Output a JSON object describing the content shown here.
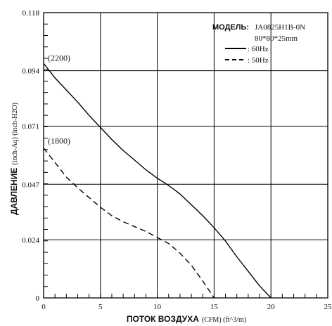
{
  "chart_data": {
    "type": "line",
    "title": "",
    "xlabel": {
      "main": "ПОТОК ВОЗДУХА",
      "units": "(CFM) (ft^3/m)"
    },
    "ylabel": {
      "main": "ДАВЛЕНИЕ",
      "units": "(inch-Aq) (inch-H2O)"
    },
    "xlim": [
      0,
      25
    ],
    "ylim": [
      0,
      0.118
    ],
    "x_ticks": [
      "0",
      "5",
      "10",
      "15",
      "20",
      "25"
    ],
    "y_ticks": [
      "0",
      "0.024",
      "0.047",
      "0.071",
      "0.094",
      "0.118"
    ],
    "x_tick_values": [
      0,
      5,
      10,
      15,
      20,
      25
    ],
    "y_tick_values": [
      0,
      0.024,
      0.047,
      0.071,
      0.094,
      0.118
    ],
    "grid": true,
    "legend": {
      "position": "top-right",
      "model_label": "МОДЕЛЬ:",
      "model_value": "JA0825H1B-0N",
      "size": "80*80*25mm",
      "entries": [
        ": 60Hz",
        ": 50Hz"
      ]
    },
    "series": [
      {
        "name": "60Hz",
        "style": "solid",
        "annotation": "(2200)",
        "x": [
          0,
          1,
          2,
          3,
          4,
          5,
          6,
          7,
          8,
          9,
          10,
          11,
          12,
          13,
          14,
          15,
          16,
          17,
          18,
          19,
          20
        ],
        "y": [
          0.097,
          0.091,
          0.086,
          0.081,
          0.0755,
          0.0705,
          0.0655,
          0.061,
          0.057,
          0.053,
          0.0495,
          0.0465,
          0.043,
          0.0385,
          0.034,
          0.029,
          0.0235,
          0.017,
          0.011,
          0.005,
          0.0
        ]
      },
      {
        "name": "50Hz",
        "style": "dashed",
        "annotation": "(1800)",
        "x": [
          0,
          1,
          2,
          3,
          4,
          5,
          6,
          7,
          8,
          9,
          10,
          11,
          12,
          13,
          14,
          15
        ],
        "y": [
          0.062,
          0.056,
          0.05,
          0.0455,
          0.0415,
          0.0375,
          0.034,
          0.0315,
          0.0295,
          0.0275,
          0.025,
          0.0225,
          0.0185,
          0.0135,
          0.007,
          0.0
        ]
      }
    ]
  }
}
